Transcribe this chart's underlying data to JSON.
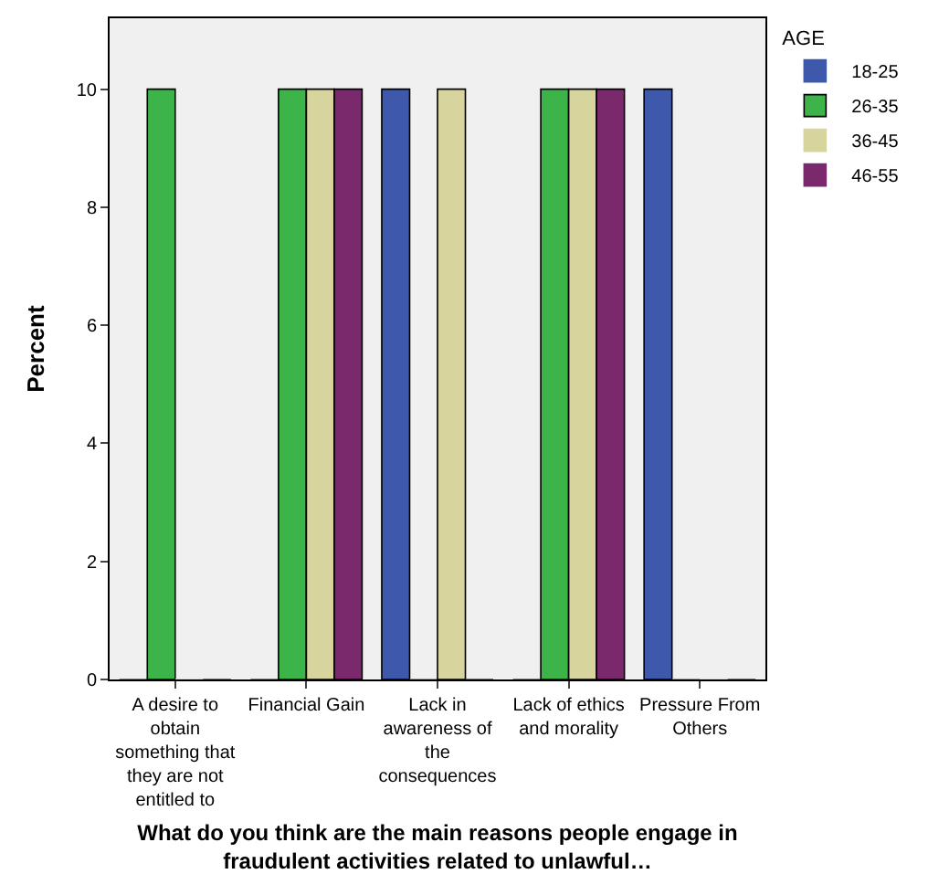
{
  "chart_data": {
    "type": "bar",
    "xlabel": "What do you think are the main reasons people engage in fraudulent activities related to unlawful…",
    "ylabel": "Percent",
    "legend_title": "AGE",
    "categories": [
      "A desire to obtain something that they are not entitled to",
      "Financial Gain",
      "Lack in awareness of the consequences",
      "Lack of ethics and morality",
      "Pressure From Others"
    ],
    "series": [
      {
        "name": "18-25",
        "color": "#3e58ac",
        "values": [
          0,
          0,
          10,
          0,
          10
        ]
      },
      {
        "name": "26-35",
        "color": "#3cb44a",
        "values": [
          10,
          10,
          0,
          10,
          0
        ]
      },
      {
        "name": "36-45",
        "color": "#d8d49e",
        "values": [
          0,
          10,
          10,
          10,
          0
        ]
      },
      {
        "name": "46-55",
        "color": "#7a2a6c",
        "values": [
          0,
          10,
          0,
          10,
          0
        ]
      }
    ],
    "ylim": [
      0,
      11.2
    ],
    "yticks": [
      0,
      2,
      4,
      6,
      8,
      10
    ],
    "grid": false,
    "legend": "top right"
  }
}
